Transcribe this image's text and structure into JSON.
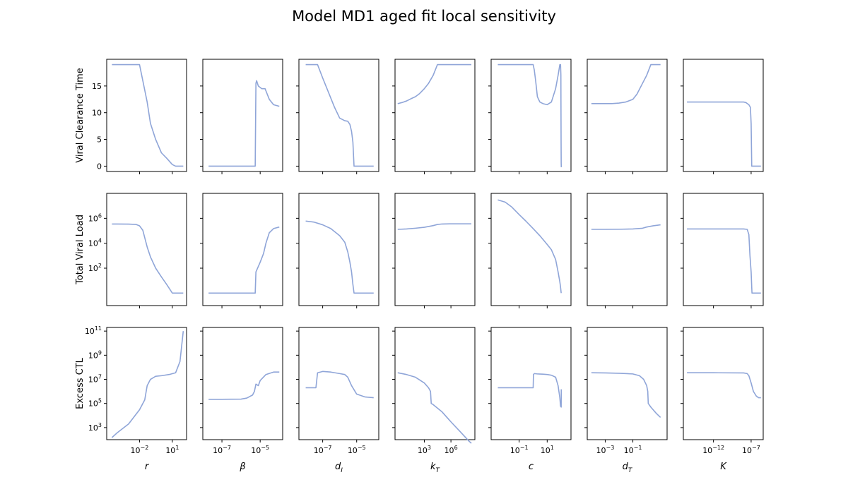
{
  "chart_data": {
    "type": "line",
    "title": "Model MD1 aged fit local sensitivity",
    "line_color": "#8fa5d8",
    "rows": [
      {
        "ylabel": "Viral Clearance Time",
        "yscale": "linear",
        "ylim": [
          -1,
          20
        ],
        "yticks": [
          {
            "v": 0,
            "label": "0"
          },
          {
            "v": 5,
            "label": "5"
          },
          {
            "v": 10,
            "label": "10"
          },
          {
            "v": 15,
            "label": "15"
          }
        ]
      },
      {
        "ylabel": "Total Viral Load",
        "yscale": "log",
        "ylim": [
          0.1,
          100000000
        ],
        "yticks": [
          {
            "v": 100,
            "label": "10",
            "sup": "2"
          },
          {
            "v": 10000,
            "label": "10",
            "sup": "4"
          },
          {
            "v": 1000000,
            "label": "10",
            "sup": "6"
          }
        ]
      },
      {
        "ylabel": "Excess CTL",
        "yscale": "log",
        "ylim": [
          100,
          200000000000
        ],
        "yticks": [
          {
            "v": 1000,
            "label": "10",
            "sup": "3"
          },
          {
            "v": 100000,
            "label": "10",
            "sup": "5"
          },
          {
            "v": 10000000,
            "label": "10",
            "sup": "7"
          },
          {
            "v": 1000000000,
            "label": "10",
            "sup": "9"
          },
          {
            "v": 100000000000,
            "label": "10",
            "sup": "11"
          }
        ]
      }
    ],
    "columns": [
      {
        "label": "r",
        "sub": "",
        "xscale": "log",
        "xlim": [
          1e-05,
          200
        ],
        "xticks": [
          {
            "v": 0.01,
            "label": "10",
            "sup": "−2"
          },
          {
            "v": 10,
            "label": "10",
            "sup": "1"
          }
        ],
        "series": [
          {
            "x": [
              3e-05,
              0.0001,
              0.0005,
              0.001,
              0.003,
              0.005,
              0.01,
              0.02,
              0.05,
              0.1,
              0.3,
              1,
              3,
              10,
              20,
              50,
              100
            ],
            "y": [
              19,
              19,
              19,
              19,
              19,
              19,
              19,
              16,
              12,
              8,
              5,
              2.5,
              1.5,
              0.3,
              0,
              0,
              0
            ]
          },
          {
            "x": [
              3e-05,
              0.0001,
              0.001,
              0.005,
              0.01,
              0.02,
              0.05,
              0.1,
              0.3,
              1,
              3,
              10,
              20,
              50,
              100
            ],
            "y": [
              350000,
              350000,
              340000,
              320000,
              250000,
              110000,
              5000,
              800,
              100,
              20,
              5,
              1,
              1,
              1,
              1
            ]
          },
          {
            "x": [
              3e-05,
              0.0001,
              0.001,
              0.01,
              0.02,
              0.03,
              0.05,
              0.1,
              0.3,
              1,
              5,
              20,
              50,
              100
            ],
            "y": [
              150,
              400,
              2000,
              30000,
              100000,
              200000,
              3000000,
              10000000,
              18000000,
              20000000,
              25000000,
              35000000,
              300000000,
              100000000000
            ]
          }
        ]
      },
      {
        "label": "β",
        "sub": "",
        "xscale": "log",
        "xlim": [
          1e-08,
          0.00015
        ],
        "xticks": [
          {
            "v": 1e-07,
            "label": "10",
            "sup": "−7"
          },
          {
            "v": 1e-05,
            "label": "10",
            "sup": "−5"
          }
        ],
        "series": [
          {
            "x": [
              2e-08,
              1e-07,
              1e-06,
              5e-06,
              5.5e-06,
              6e-06,
              6.5e-06,
              8e-06,
              1.2e-05,
              1.8e-05,
              3e-05,
              5e-05,
              0.0001
            ],
            "y": [
              0,
              0,
              0,
              0,
              0,
              15.5,
              16,
              15,
              14.5,
              14.5,
              12.5,
              11.5,
              11.2
            ]
          },
          {
            "x": [
              2e-08,
              1e-07,
              1e-06,
              5e-06,
              5.5e-06,
              6e-06,
              1e-05,
              1.5e-05,
              2e-05,
              3e-05,
              5e-05,
              0.0001
            ],
            "y": [
              1,
              1,
              1,
              1,
              1,
              50,
              300,
              1500,
              10000,
              70000,
              150000,
              200000
            ]
          },
          {
            "x": [
              2e-08,
              1e-07,
              1e-06,
              2e-06,
              4e-06,
              5e-06,
              6e-06,
              8e-06,
              1e-05,
              2e-05,
              5e-05,
              0.0001
            ],
            "y": [
              220000,
              220000,
              230000,
              280000,
              500000,
              1000000,
              4000000,
              3000000,
              8000000,
              25000000,
              40000000,
              40000000
            ]
          }
        ]
      },
      {
        "label": "d",
        "sub": "I",
        "xscale": "log",
        "xlim": [
          4e-09,
          0.0002
        ],
        "xticks": [
          {
            "v": 1e-07,
            "label": "10",
            "sup": "−7"
          },
          {
            "v": 1e-05,
            "label": "10",
            "sup": "−5"
          }
        ],
        "series": [
          {
            "x": [
              1e-08,
              3e-08,
              5e-08,
              1e-07,
              5e-07,
              1e-06,
              2e-06,
              3e-06,
              4e-06,
              5e-06,
              6e-06,
              7e-06,
              7.5e-06,
              1e-05,
              0.0001
            ],
            "y": [
              19,
              19,
              19,
              16.5,
              11,
              9,
              8.5,
              8.4,
              7.8,
              6.5,
              4.5,
              0,
              0,
              0,
              0
            ]
          },
          {
            "x": [
              1e-08,
              3e-08,
              1e-07,
              3e-07,
              1e-06,
              2e-06,
              3e-06,
              4e-06,
              5e-06,
              6e-06,
              7e-06,
              7.5e-06,
              1e-05,
              0.0001
            ],
            "y": [
              600000,
              500000,
              300000,
              150000,
              40000,
              12000,
              2000,
              300,
              50,
              5,
              1,
              1,
              1,
              1
            ]
          },
          {
            "x": [
              1e-08,
              3e-08,
              4e-08,
              5e-08,
              1e-07,
              3e-07,
              1e-06,
              2e-06,
              3e-06,
              5e-06,
              1e-05,
              3e-05,
              0.0001
            ],
            "y": [
              2000000,
              2000000,
              2000000,
              35000000,
              45000000,
              40000000,
              30000000,
              25000000,
              15000000,
              3000000,
              600000,
              350000,
              300000
            ]
          }
        ]
      },
      {
        "label": "k",
        "sub": "T",
        "xscale": "log",
        "xlim": [
          0.5,
          500000000
        ],
        "xticks": [
          {
            "v": 1000,
            "label": "10",
            "sup": "3"
          },
          {
            "v": 1000000,
            "label": "10",
            "sup": "6"
          }
        ],
        "series": [
          {
            "x": [
              1,
              3,
              10,
              30,
              100,
              300,
              1000,
              3000,
              10000,
              30000,
              100000,
              1000000,
              10000000,
              100000000,
              200000000
            ],
            "y": [
              11.7,
              11.9,
              12.2,
              12.6,
              13,
              13.6,
              14.5,
              15.5,
              17,
              19,
              19,
              19,
              19,
              19,
              19
            ]
          },
          {
            "x": [
              1,
              10,
              100,
              1000,
              10000,
              30000,
              100000,
              1000000,
              10000000,
              100000000,
              200000000
            ],
            "y": [
              130000,
              140000,
              160000,
              190000,
              260000,
              320000,
              350000,
              360000,
              360000,
              360000,
              360000
            ]
          },
          {
            "x": [
              1,
              10,
              100,
              1000,
              3000,
              5000,
              6000,
              10000,
              100000,
              1000000,
              10000000,
              100000000,
              200000000
            ],
            "y": [
              35000000,
              25000000,
              15000000,
              5000000,
              2000000,
              1000000,
              100000,
              80000,
              20000,
              3000,
              500,
              80,
              50
            ]
          }
        ]
      },
      {
        "label": "c",
        "sub": "",
        "xscale": "log",
        "xlim": [
          0.001,
          500
        ],
        "xticks": [
          {
            "v": 0.1,
            "label": "10",
            "sup": "−1"
          },
          {
            "v": 10,
            "label": "10",
            "sup": "1"
          }
        ],
        "series": [
          {
            "x": [
              0.003,
              0.01,
              0.1,
              0.5,
              1,
              1.2,
              1.5,
              2,
              3,
              5,
              10,
              20,
              40,
              60,
              80,
              90,
              95,
              98,
              100,
              102
            ],
            "y": [
              19,
              19,
              19,
              19,
              19,
              18,
              16,
              13,
              12,
              11.7,
              11.5,
              12,
              14.5,
              17,
              19,
              19,
              17,
              5,
              0.5,
              -0.2
            ]
          },
          {
            "x": [
              0.003,
              0.01,
              0.03,
              0.1,
              0.3,
              1,
              3,
              10,
              20,
              40,
              60,
              80,
              90,
              100
            ],
            "y": [
              30000000,
              20000000,
              8000000,
              2000000,
              600000,
              150000,
              40000,
              8000,
              3000,
              500,
              50,
              8,
              3,
              1
            ]
          },
          {
            "x": [
              0.003,
              0.01,
              0.1,
              0.5,
              1,
              1.05,
              1.2,
              2,
              5,
              10,
              20,
              40,
              60,
              80,
              90,
              100,
              101
            ],
            "y": [
              2000000,
              2000000,
              2000000,
              2000000,
              2000000,
              25000000,
              30000000,
              28000000,
              27000000,
              25000000,
              22000000,
              15000000,
              3000000,
              300000,
              60000,
              50000,
              1500000
            ]
          }
        ]
      },
      {
        "label": "d",
        "sub": "T",
        "xscale": "log",
        "xlim": [
          5e-05,
          30
        ],
        "xticks": [
          {
            "v": 0.001,
            "label": "10",
            "sup": "−3"
          },
          {
            "v": 0.1,
            "label": "10",
            "sup": "−1"
          }
        ],
        "series": [
          {
            "x": [
              0.0001,
              0.001,
              0.003,
              0.01,
              0.03,
              0.1,
              0.2,
              0.5,
              1,
              2,
              3,
              5,
              10
            ],
            "y": [
              11.7,
              11.7,
              11.7,
              11.8,
              12,
              12.5,
              13.5,
              15.5,
              17,
              19,
              19,
              19,
              19
            ]
          },
          {
            "x": [
              0.0001,
              0.001,
              0.01,
              0.1,
              0.5,
              1,
              3,
              10
            ],
            "y": [
              130000,
              130000,
              132000,
              140000,
              160000,
              200000,
              250000,
              300000
            ]
          },
          {
            "x": [
              0.0001,
              0.001,
              0.01,
              0.1,
              0.3,
              0.6,
              1,
              1.2,
              1.3,
              2,
              5,
              10
            ],
            "y": [
              35000000,
              34000000,
              32000000,
              28000000,
              20000000,
              10000000,
              3000000,
              1000000,
              100000,
              50000,
              15000,
              7000
            ]
          }
        ]
      },
      {
        "label": "K",
        "sub": "",
        "xscale": "log",
        "xlim": [
          1e-16,
          4e-06
        ],
        "xticks": [
          {
            "v": 1e-12,
            "label": "10",
            "sup": "−12"
          },
          {
            "v": 1e-07,
            "label": "10",
            "sup": "−7"
          }
        ],
        "series": [
          {
            "x": [
              3e-16,
              1e-12,
              1e-08,
              2e-08,
              5e-08,
              8e-08,
              1e-07,
              1.2e-07,
              1.3e-07,
              2e-07,
              2e-06
            ],
            "y": [
              12,
              12,
              12,
              11.9,
              11.5,
              11,
              8,
              0,
              0,
              0,
              0
            ]
          },
          {
            "x": [
              3e-16,
              1e-12,
              1e-08,
              3e-08,
              5e-08,
              7e-08,
              1e-07,
              1.2e-07,
              1.3e-07,
              2e-07,
              2e-06
            ],
            "y": [
              140000,
              140000,
              140000,
              130000,
              50000,
              1000,
              50,
              3,
              1,
              1,
              1
            ]
          },
          {
            "x": [
              3e-16,
              1e-12,
              1e-08,
              3e-08,
              5e-08,
              1e-07,
              2e-07,
              5e-07,
              1e-06,
              2e-06
            ],
            "y": [
              35000000,
              35000000,
              34000000,
              30000000,
              20000000,
              5000000,
              1000000,
              400000,
              300000,
              300000
            ]
          }
        ]
      }
    ]
  }
}
